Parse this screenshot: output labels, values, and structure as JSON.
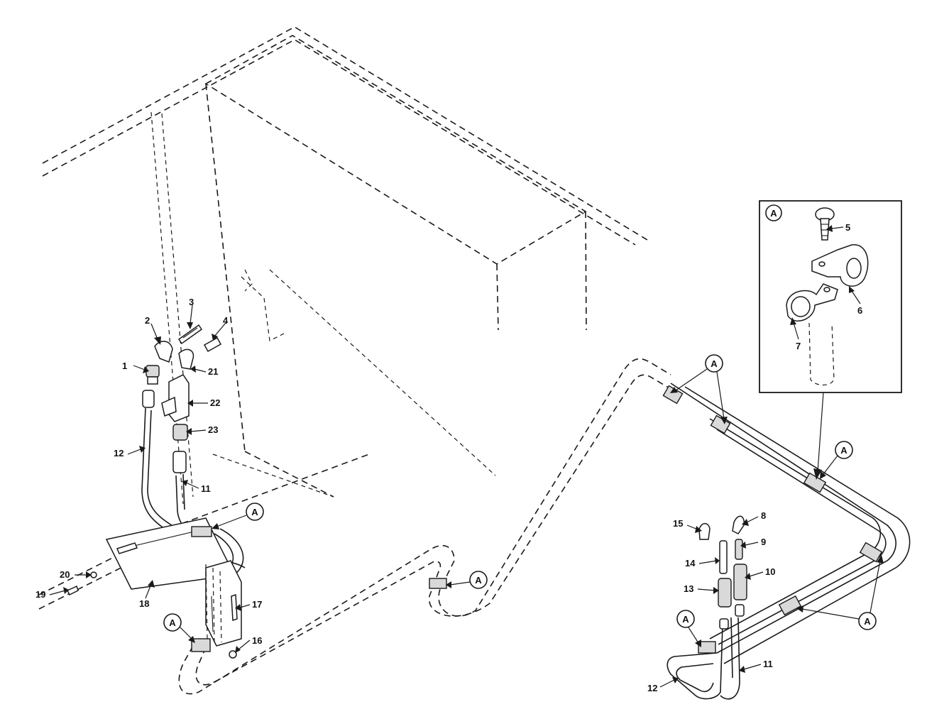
{
  "diagram": {
    "callouts": [
      {
        "id": "1",
        "label": "1"
      },
      {
        "id": "2",
        "label": "2"
      },
      {
        "id": "3",
        "label": "3"
      },
      {
        "id": "4",
        "label": "4"
      },
      {
        "id": "5",
        "label": "5"
      },
      {
        "id": "6",
        "label": "6"
      },
      {
        "id": "7",
        "label": "7"
      },
      {
        "id": "8",
        "label": "8"
      },
      {
        "id": "9",
        "label": "9"
      },
      {
        "id": "10",
        "label": "10"
      },
      {
        "id": "11a",
        "label": "11"
      },
      {
        "id": "11b",
        "label": "11"
      },
      {
        "id": "12a",
        "label": "12"
      },
      {
        "id": "12b",
        "label": "12"
      },
      {
        "id": "13",
        "label": "13"
      },
      {
        "id": "14",
        "label": "14"
      },
      {
        "id": "15",
        "label": "15"
      },
      {
        "id": "16",
        "label": "16"
      },
      {
        "id": "17",
        "label": "17"
      },
      {
        "id": "18",
        "label": "18"
      },
      {
        "id": "19",
        "label": "19"
      },
      {
        "id": "20",
        "label": "20"
      },
      {
        "id": "21",
        "label": "21"
      },
      {
        "id": "22",
        "label": "22"
      },
      {
        "id": "23",
        "label": "23"
      }
    ],
    "detail_ref": "A"
  }
}
